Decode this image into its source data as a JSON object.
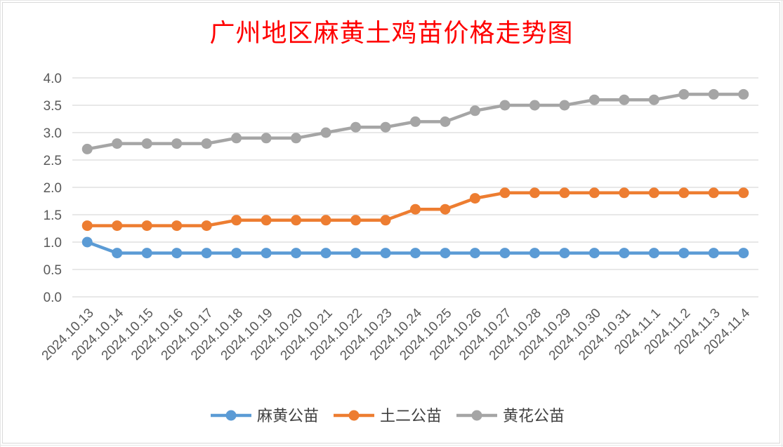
{
  "chart_data": {
    "type": "line",
    "title": "广州地区麻黄土鸡苗价格走势图",
    "xlabel": "",
    "ylabel": "",
    "ylim": [
      0,
      4
    ],
    "yticks": [
      "0.0",
      "0.5",
      "1.0",
      "1.5",
      "2.0",
      "2.5",
      "3.0",
      "3.5",
      "4.0"
    ],
    "grid": true,
    "legend_position": "bottom",
    "categories": [
      "2024.10.13",
      "2024.10.14",
      "2024.10.15",
      "2024.10.16",
      "2024.10.17",
      "2024.10.18",
      "2024.10.19",
      "2024.10.20",
      "2024.10.21",
      "2024.10.22",
      "2024.10.23",
      "2024.10.24",
      "2024.10.25",
      "2024.10.26",
      "2024.10.27",
      "2024.10.28",
      "2024.10.29",
      "2024.10.30",
      "2024.10.31",
      "2024.11.1",
      "2024.11.2",
      "2024.11.3",
      "2024.11.4"
    ],
    "series": [
      {
        "name": "麻黄公苗",
        "color": "#5b9bd5",
        "values": [
          1.0,
          0.8,
          0.8,
          0.8,
          0.8,
          0.8,
          0.8,
          0.8,
          0.8,
          0.8,
          0.8,
          0.8,
          0.8,
          0.8,
          0.8,
          0.8,
          0.8,
          0.8,
          0.8,
          0.8,
          0.8,
          0.8,
          0.8
        ]
      },
      {
        "name": "土二公苗",
        "color": "#ed7d31",
        "values": [
          1.3,
          1.3,
          1.3,
          1.3,
          1.3,
          1.4,
          1.4,
          1.4,
          1.4,
          1.4,
          1.4,
          1.6,
          1.6,
          1.8,
          1.9,
          1.9,
          1.9,
          1.9,
          1.9,
          1.9,
          1.9,
          1.9,
          1.9
        ]
      },
      {
        "name": "黄花公苗",
        "color": "#a5a5a5",
        "values": [
          2.7,
          2.8,
          2.8,
          2.8,
          2.8,
          2.9,
          2.9,
          2.9,
          3.0,
          3.1,
          3.1,
          3.2,
          3.2,
          3.4,
          3.5,
          3.5,
          3.5,
          3.6,
          3.6,
          3.6,
          3.7,
          3.7,
          3.7
        ]
      }
    ]
  }
}
